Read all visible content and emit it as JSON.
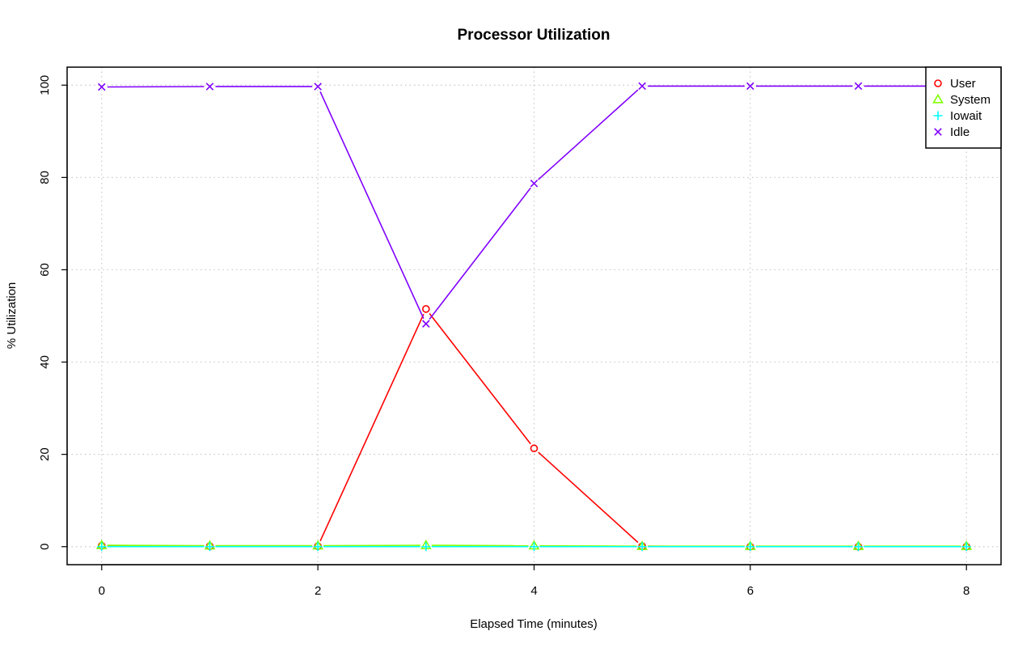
{
  "chart_data": {
    "type": "line",
    "title": "Processor Utilization",
    "xlabel": "Elapsed Time (minutes)",
    "ylabel": "% Utilization",
    "x": [
      0,
      1,
      2,
      3,
      4,
      5,
      6,
      7,
      8
    ],
    "xlim": [
      -0.32,
      8.32
    ],
    "ylim": [
      -3.9,
      103.9
    ],
    "x_ticks": [
      0,
      2,
      4,
      6,
      8
    ],
    "y_ticks": [
      0,
      20,
      40,
      60,
      80,
      100
    ],
    "grid": true,
    "legend_position": "top-right",
    "series": [
      {
        "name": "User",
        "color": "#ff0000",
        "marker": "circle",
        "values": [
          0.2,
          0.1,
          0.1,
          51.5,
          21.3,
          0.1,
          0.0,
          0.0,
          0.0
        ]
      },
      {
        "name": "System",
        "color": "#80ff00",
        "marker": "triangle",
        "values": [
          0.3,
          0.2,
          0.2,
          0.3,
          0.2,
          0.1,
          0.1,
          0.1,
          0.1
        ]
      },
      {
        "name": "Iowait",
        "color": "#00ffff",
        "marker": "plus",
        "values": [
          0.0,
          0.0,
          0.0,
          0.0,
          0.0,
          0.0,
          0.0,
          0.0,
          0.0
        ]
      },
      {
        "name": "Idle",
        "color": "#8000ff",
        "marker": "cross",
        "values": [
          99.6,
          99.7,
          99.7,
          48.3,
          78.7,
          99.8,
          99.8,
          99.8,
          99.8
        ]
      }
    ]
  }
}
